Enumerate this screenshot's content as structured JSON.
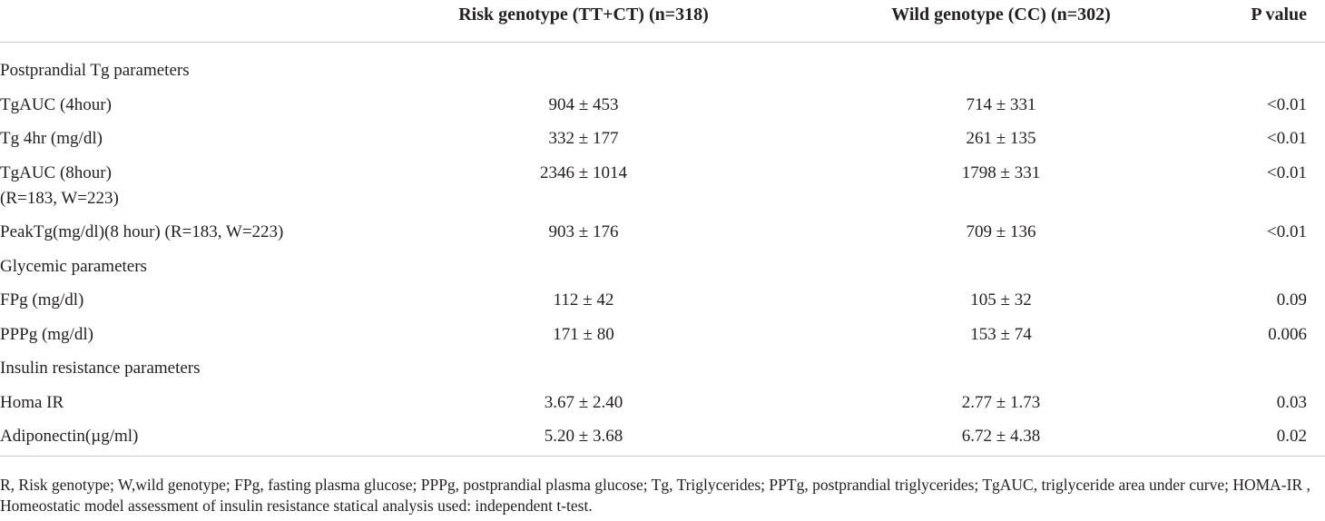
{
  "table": {
    "header": [
      "Risk genotype (TT+CT) (n=318)",
      "Wild genotype (CC) (n=302)",
      "P value"
    ],
    "rows": [
      {
        "label": [
          "Postprandial Tg parameters"
        ]
      },
      {
        "label": [
          "TgAUC (4hour)"
        ],
        "cells": [
          "904 ± 453",
          "714 ± 331",
          "<0.01"
        ]
      },
      {
        "label": [
          "Tg 4hr (mg/dl)"
        ],
        "cells": [
          "332 ± 177",
          "261 ± 135",
          "<0.01"
        ]
      },
      {
        "label": [
          "TgAUC (8hour)",
          "(R=183, W=223)"
        ],
        "cells": [
          "2346 ± 1014",
          "1798 ± 331",
          "<0.01"
        ]
      },
      {
        "label": [
          "PeakTg(mg/dl)(8 hour) (R=183, W=223)"
        ],
        "cells": [
          "903 ± 176",
          "709 ± 136",
          "<0.01"
        ]
      },
      {
        "label": [
          "Glycemic parameters"
        ]
      },
      {
        "label": [
          "FPg (mg/dl)"
        ],
        "cells": [
          "112 ± 42",
          "105 ± 32",
          "0.09"
        ]
      },
      {
        "label": [
          "PPPg (mg/dl)"
        ],
        "cells": [
          "171 ± 80",
          "153 ± 74",
          "0.006"
        ]
      },
      {
        "label": [
          "Insulin resistance parameters"
        ]
      },
      {
        "label": [
          "Homa IR"
        ],
        "cells": [
          "3.67 ± 2.40",
          "2.77 ± 1.73",
          "0.03"
        ]
      },
      {
        "label": [
          "Adiponectin(µg/ml)"
        ],
        "cells": [
          "5.20 ± 3.68",
          "6.72 ± 4.38",
          "0.02"
        ]
      }
    ],
    "footnote": "R, Risk genotype; W,wild genotype; FPg, fasting plasma glucose; PPPg, postprandial plasma glucose; Tg, Triglycerides; PPTg, postprandial triglycerides; TgAUC, triglyceride area under curve; HOMA-IR , Homeostatic model assessment of insulin resistance statical analysis used: independent t-test."
  }
}
